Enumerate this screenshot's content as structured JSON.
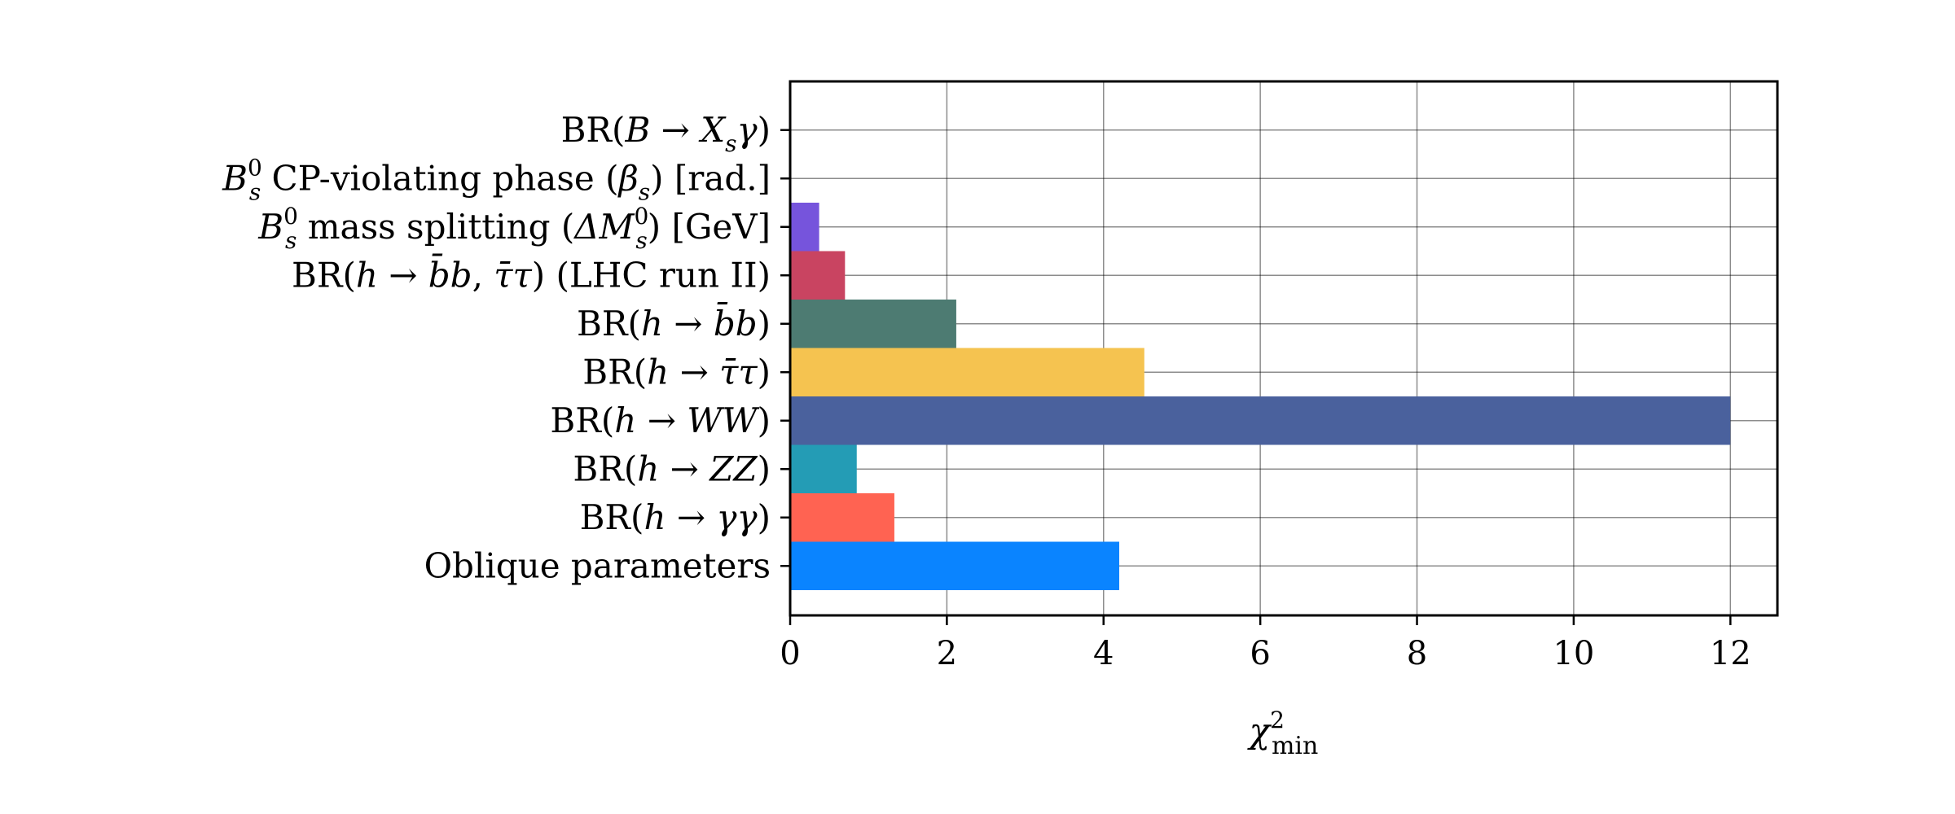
{
  "chart_data": {
    "type": "bar",
    "orientation": "horizontal",
    "title": "",
    "xlabel": "χ²_min",
    "xlabel_parts": {
      "symbol": "χ",
      "sup": "2",
      "sub": "min"
    },
    "ylabel": "",
    "xlim": [
      0,
      12.6
    ],
    "xticks": [
      0,
      2,
      4,
      6,
      8,
      10,
      12
    ],
    "grid": true,
    "categories": [
      "Oblique parameters",
      "BR(h → γγ)",
      "BR(h → ZZ)",
      "BR(h → WW)",
      "BR(h → τ̄τ)",
      "BR(h → b̄b)",
      "BR(h → b̄b, τ̄τ) (LHC run II)",
      "B_s^0 mass splitting (ΔM_s^0) [GeV]",
      "B_s^0 CP-violating phase (β_s) [rad.]",
      "BR(B → X_s γ)"
    ],
    "values": [
      4.2,
      1.33,
      0.85,
      12.0,
      4.52,
      2.12,
      0.7,
      0.37,
      0.0,
      0.0
    ],
    "colors": [
      "#0A84FF",
      "#FF6352",
      "#249CB5",
      "#4A619D",
      "#F5C350",
      "#4D7B72",
      "#C94461",
      "#7654DC",
      "#888888",
      "#888888"
    ]
  }
}
